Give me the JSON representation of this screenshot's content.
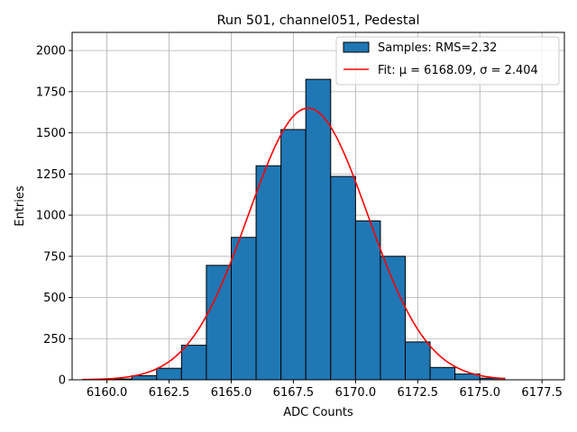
{
  "chart_data": {
    "type": "bar",
    "title": "Run 501, channel051, Pedestal",
    "xlabel": "ADC Counts",
    "ylabel": "Entries",
    "xlim": [
      6158.6,
      6178.4
    ],
    "ylim": [
      0,
      2110
    ],
    "grid": true,
    "legend_placement": "top-right",
    "bar_color": "#1f77b4",
    "fit_color": "#ff0000",
    "x_ticks": [
      6160.0,
      6162.5,
      6165.0,
      6167.5,
      6170.0,
      6172.5,
      6175.0,
      6177.5
    ],
    "x_tick_labels": [
      "6160.0",
      "6162.5",
      "6165.0",
      "6167.5",
      "6170.0",
      "6172.5",
      "6175.0",
      "6177.5"
    ],
    "y_ticks": [
      0,
      250,
      500,
      750,
      1000,
      1250,
      1500,
      1750,
      2000
    ],
    "y_tick_labels": [
      "0",
      "250",
      "500",
      "750",
      "1000",
      "1250",
      "1500",
      "1750",
      "2000"
    ],
    "bins": {
      "edges": [
        6160,
        6161,
        6162,
        6163,
        6164,
        6165,
        6166,
        6167,
        6168,
        6169,
        6170,
        6171,
        6172,
        6173,
        6174,
        6175,
        6176
      ],
      "counts": [
        5,
        25,
        70,
        210,
        695,
        865,
        1300,
        1520,
        1825,
        1235,
        965,
        750,
        230,
        75,
        35,
        10
      ]
    },
    "fit": {
      "mu": 6168.09,
      "sigma": 2.404,
      "amplitude": 1650,
      "x_range": [
        6159,
        6176
      ]
    },
    "legend": [
      {
        "label": "Samples: RMS=2.32",
        "kind": "patch"
      },
      {
        "label": "Fit: μ = 6168.09, σ = 2.404",
        "kind": "line"
      }
    ]
  }
}
